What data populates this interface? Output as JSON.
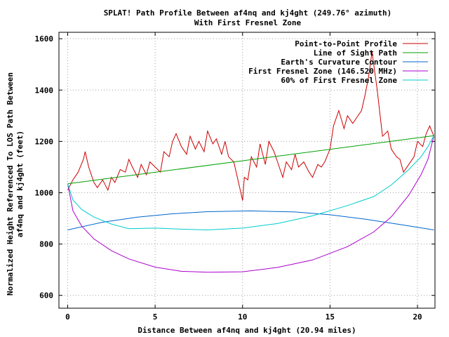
{
  "chart_data": {
    "type": "line",
    "title": "SPLAT! Path Profile Between af4nq and kj4ght (249.76° azimuth)",
    "subtitle": "With First Fresnel Zone",
    "xlabel": "Distance Between af4nq and kj4ght (20.94 miles)",
    "ylabel_line1": "Normalized Height Referenced To LOS Path Between",
    "ylabel_line2": "af4nq and kj4ght (feet)",
    "xlim": [
      -0.5,
      21.0
    ],
    "ylim": [
      550,
      1625
    ],
    "x_ticks": [
      0,
      5,
      10,
      15,
      20
    ],
    "y_ticks": [
      600,
      800,
      1000,
      1200,
      1400,
      1600
    ],
    "grid": true,
    "legend_position": "top-right",
    "series": [
      {
        "name": "Point-to-Point Profile",
        "color": "#cc0000",
        "x": [
          0,
          0.3,
          0.6,
          0.9,
          1.0,
          1.2,
          1.5,
          1.7,
          2.0,
          2.3,
          2.5,
          2.7,
          3.0,
          3.3,
          3.5,
          3.7,
          4.0,
          4.2,
          4.5,
          4.7,
          5.0,
          5.3,
          5.5,
          5.8,
          6.0,
          6.2,
          6.5,
          6.8,
          7.0,
          7.3,
          7.5,
          7.8,
          8.0,
          8.3,
          8.5,
          8.8,
          9.0,
          9.2,
          9.5,
          9.7,
          9.8,
          10.0,
          10.1,
          10.3,
          10.5,
          10.8,
          11.0,
          11.3,
          11.5,
          11.8,
          12.0,
          12.3,
          12.5,
          12.8,
          13.0,
          13.2,
          13.5,
          13.8,
          14.0,
          14.3,
          14.5,
          14.7,
          15.0,
          15.2,
          15.5,
          15.8,
          16.0,
          16.3,
          16.5,
          16.8,
          17.0,
          17.2,
          17.4,
          17.5,
          17.7,
          18.0,
          18.3,
          18.5,
          18.8,
          19.0,
          19.2,
          19.5,
          19.8,
          20.0,
          20.3,
          20.5,
          20.7,
          20.94
        ],
        "values": [
          1010,
          1050,
          1080,
          1130,
          1160,
          1100,
          1040,
          1020,
          1050,
          1010,
          1060,
          1040,
          1090,
          1080,
          1130,
          1100,
          1060,
          1110,
          1070,
          1120,
          1100,
          1080,
          1160,
          1140,
          1200,
          1230,
          1180,
          1150,
          1220,
          1170,
          1200,
          1160,
          1240,
          1190,
          1210,
          1150,
          1200,
          1140,
          1120,
          1060,
          1030,
          970,
          1060,
          1050,
          1140,
          1100,
          1190,
          1110,
          1200,
          1160,
          1120,
          1060,
          1120,
          1090,
          1150,
          1100,
          1120,
          1080,
          1060,
          1110,
          1100,
          1120,
          1170,
          1260,
          1320,
          1250,
          1300,
          1270,
          1290,
          1320,
          1380,
          1450,
          1550,
          1500,
          1400,
          1220,
          1240,
          1170,
          1140,
          1130,
          1080,
          1110,
          1140,
          1200,
          1180,
          1230,
          1260,
          1220
        ]
      },
      {
        "name": "Line of Sight Path",
        "color": "#00a000",
        "x": [
          0,
          20.94
        ],
        "values": [
          1035,
          1222
        ]
      },
      {
        "name": "Earth's Curvature Contour",
        "color": "#0066cc",
        "x": [
          0,
          2,
          4,
          6,
          8,
          10.47,
          13,
          15,
          17,
          19,
          20.94
        ],
        "values": [
          855,
          885,
          905,
          918,
          926,
          929,
          925,
          914,
          897,
          876,
          855
        ]
      },
      {
        "name": "First Fresnel Zone (146.520 MHz)",
        "color": "#aa00cc",
        "x": [
          0,
          0.3,
          0.8,
          1.5,
          2.5,
          3.5,
          5,
          6.5,
          8,
          10,
          12,
          14,
          16,
          17.5,
          18.5,
          19.5,
          20.2,
          20.6,
          20.94
        ],
        "values": [
          1035,
          930,
          870,
          820,
          774,
          742,
          710,
          694,
          690,
          692,
          709,
          738,
          790,
          847,
          906,
          990,
          1070,
          1130,
          1222
        ]
      },
      {
        "name": "60% of First Fresnel Zone",
        "color": "#00cccc",
        "x": [
          0,
          0.3,
          0.8,
          1.5,
          2.5,
          3.5,
          5,
          6.5,
          8,
          10,
          12,
          14,
          16,
          17.5,
          18.5,
          19.5,
          20.2,
          20.6,
          20.94
        ],
        "values": [
          1035,
          972,
          935,
          905,
          878,
          860,
          862,
          858,
          855,
          862,
          880,
          910,
          950,
          985,
          1030,
          1090,
          1140,
          1180,
          1222
        ]
      }
    ]
  }
}
